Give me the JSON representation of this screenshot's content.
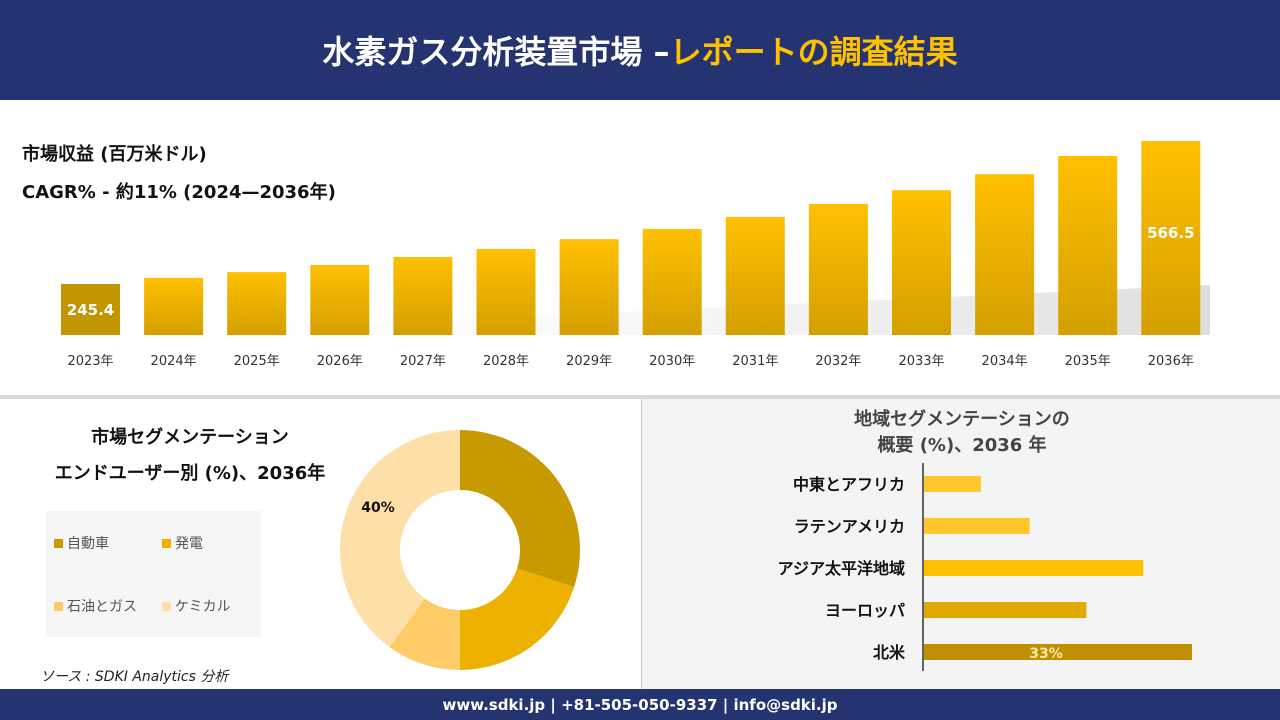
{
  "header": {
    "title_main": "水素ガス分析装置市場 –",
    "title_accent": "レポートの調査結果"
  },
  "colors": {
    "header_bg": "#253470",
    "accent": "#FFC000"
  },
  "chart_data": [
    {
      "type": "bar",
      "title": "市場収益 (百万米ドル)",
      "subtitle": "CAGR% - 約11% (2024—2036年)",
      "categories": [
        "2023年",
        "2024年",
        "2025年",
        "2026年",
        "2027年",
        "2028年",
        "2029年",
        "2030年",
        "2031年",
        "2032年",
        "2033年",
        "2034年",
        "2035年",
        "2036年"
      ],
      "values": [
        245.4,
        259,
        272,
        288,
        306,
        324,
        346,
        369,
        396,
        425,
        456,
        492,
        533,
        566.5
      ],
      "data_labels": {
        "0": "245.4",
        "13": "566.5"
      }
    },
    {
      "type": "pie",
      "variant": "donut",
      "title_line1": "市場セグメンテーション",
      "title_line2": "エンドユーザー別 (%)、2036年",
      "slices": [
        {
          "name": "自動車",
          "value": 30,
          "color": "#C89A00"
        },
        {
          "name": "発電",
          "value": 20,
          "color": "#EDB200"
        },
        {
          "name": "石油とガス",
          "value": 10,
          "color": "#FFCB66"
        },
        {
          "name": "ケミカル",
          "value": 40,
          "color": "#FFDFA8"
        }
      ],
      "label": "40%",
      "legend_placement": "left"
    },
    {
      "type": "bar",
      "orientation": "horizontal",
      "title_line1": "地域セグメンテーションの",
      "title_line2": "概要 (%)、2036 年",
      "categories": [
        "中東とアフリカ",
        "ラテンアメリカ",
        "アジア太平洋地域",
        "ヨーロッパ",
        "北米"
      ],
      "values": [
        7,
        13,
        27,
        20,
        33
      ],
      "colors": [
        "#FFC72C",
        "#FFC72C",
        "#FFC000",
        "#E0A800",
        "#BF8F00"
      ],
      "data_label": "33%"
    }
  ],
  "source": "ソース : SDKI Analytics 分析",
  "footer": "www.sdki.jp | +81-505-050-9337 | info@sdki.jp"
}
